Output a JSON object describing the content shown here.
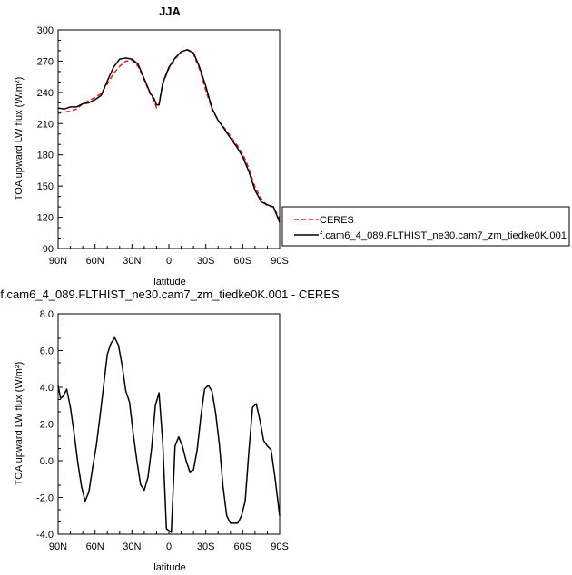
{
  "chart_data": [
    {
      "type": "line",
      "title": "JJA",
      "xlabel": "latitude",
      "ylabel": "TOA upward LW flux (W/m²)",
      "xlim": [
        90,
        -90
      ],
      "ylim": [
        90,
        300
      ],
      "x_tick_values": [
        90,
        60,
        30,
        0,
        -30,
        -60,
        -90
      ],
      "x_tick_labels": [
        "90N",
        "60N",
        "30N",
        "0",
        "30S",
        "60S",
        "90S"
      ],
      "y_tick_values": [
        90,
        120,
        150,
        180,
        210,
        240,
        270,
        300
      ],
      "y_tick_labels": [
        "90",
        "120",
        "150",
        "180",
        "210",
        "240",
        "270",
        "300"
      ],
      "x": [
        90,
        85,
        80,
        75,
        70,
        65,
        60,
        55,
        50,
        45,
        40,
        35,
        30,
        25,
        20,
        15,
        12,
        10,
        8,
        5,
        0,
        -5,
        -10,
        -15,
        -20,
        -25,
        -30,
        -35,
        -40,
        -45,
        -50,
        -55,
        -60,
        -65,
        -70,
        -75,
        -80,
        -85,
        -90
      ],
      "series": [
        {
          "name": "CERES",
          "color": "#e41a1c",
          "dash": "dashed",
          "values": [
            221,
            221,
            222,
            224,
            229,
            232,
            235,
            239,
            248,
            258,
            265,
            270,
            271,
            265,
            252,
            238,
            232,
            225,
            229,
            248,
            263,
            272,
            279,
            281,
            277,
            262,
            242,
            224,
            213,
            206,
            198,
            190,
            181,
            167,
            149,
            138,
            131,
            130,
            118
          ]
        },
        {
          "name": "f.cam6_4_089.FLTHIST_ne30.cam7_zm_tiedke0K.001",
          "color": "#000000",
          "dash": "solid",
          "values": [
            225,
            224,
            226,
            226,
            229,
            230,
            233,
            237,
            251,
            264,
            272,
            273,
            272,
            267,
            253,
            239,
            234,
            228,
            228,
            249,
            264,
            273,
            279,
            281,
            278,
            264,
            246,
            225,
            213,
            205,
            196,
            188,
            178,
            164,
            146,
            135,
            132,
            130,
            115
          ]
        }
      ],
      "legend_position": "right"
    },
    {
      "type": "line",
      "title": "f.cam6_4_089.FLTHIST_ne30.cam7_zm_tiedke0K.001 - CERES",
      "xlabel": "latitude",
      "ylabel": "TOA upward LW flux (W/m²)",
      "xlim": [
        90,
        -90
      ],
      "ylim": [
        -4.0,
        8.0
      ],
      "x_tick_values": [
        90,
        60,
        30,
        0,
        -30,
        -60,
        -90
      ],
      "x_tick_labels": [
        "90N",
        "60N",
        "30N",
        "0",
        "30S",
        "60S",
        "90S"
      ],
      "y_tick_values": [
        -4,
        -2,
        0,
        2,
        4,
        6,
        8
      ],
      "y_tick_labels": [
        "-4.0",
        "-2.0",
        "0.0",
        "2.0",
        "4.0",
        "6.0",
        "8.0"
      ],
      "x": [
        90,
        88,
        86,
        83,
        80,
        77,
        74,
        71,
        68,
        65,
        62,
        59,
        56,
        53,
        50,
        47,
        44,
        41,
        38,
        35,
        32,
        29,
        26,
        23,
        20,
        17,
        14,
        11,
        8,
        5,
        2,
        -2,
        -5,
        -8,
        -11,
        -14,
        -17,
        -20,
        -23,
        -26,
        -29,
        -32,
        -35,
        -38,
        -41,
        -44,
        -47,
        -50,
        -53,
        -56,
        -59,
        -62,
        -65,
        -68,
        -71,
        -74,
        -77,
        -80,
        -83,
        -86,
        -90
      ],
      "series": [
        {
          "name": "",
          "color": "#000000",
          "dash": "solid",
          "values": [
            4.1,
            3.4,
            3.5,
            3.9,
            2.9,
            1.5,
            -0.1,
            -1.4,
            -2.2,
            -1.7,
            -0.4,
            0.8,
            2.4,
            4.1,
            5.8,
            6.4,
            6.7,
            6.3,
            5.2,
            3.8,
            3.2,
            1.5,
            0.0,
            -1.3,
            -1.6,
            -0.9,
            0.7,
            3.0,
            3.7,
            1.0,
            -3.7,
            -3.9,
            0.8,
            1.3,
            0.8,
            0.0,
            -0.6,
            -0.5,
            0.6,
            2.4,
            3.9,
            4.1,
            3.8,
            2.6,
            0.9,
            -1.4,
            -3.0,
            -3.4,
            -3.4,
            -3.4,
            -3.0,
            -2.2,
            0.5,
            2.9,
            3.1,
            2.2,
            1.1,
            0.8,
            0.6,
            -0.8,
            -3.0
          ]
        }
      ]
    }
  ]
}
